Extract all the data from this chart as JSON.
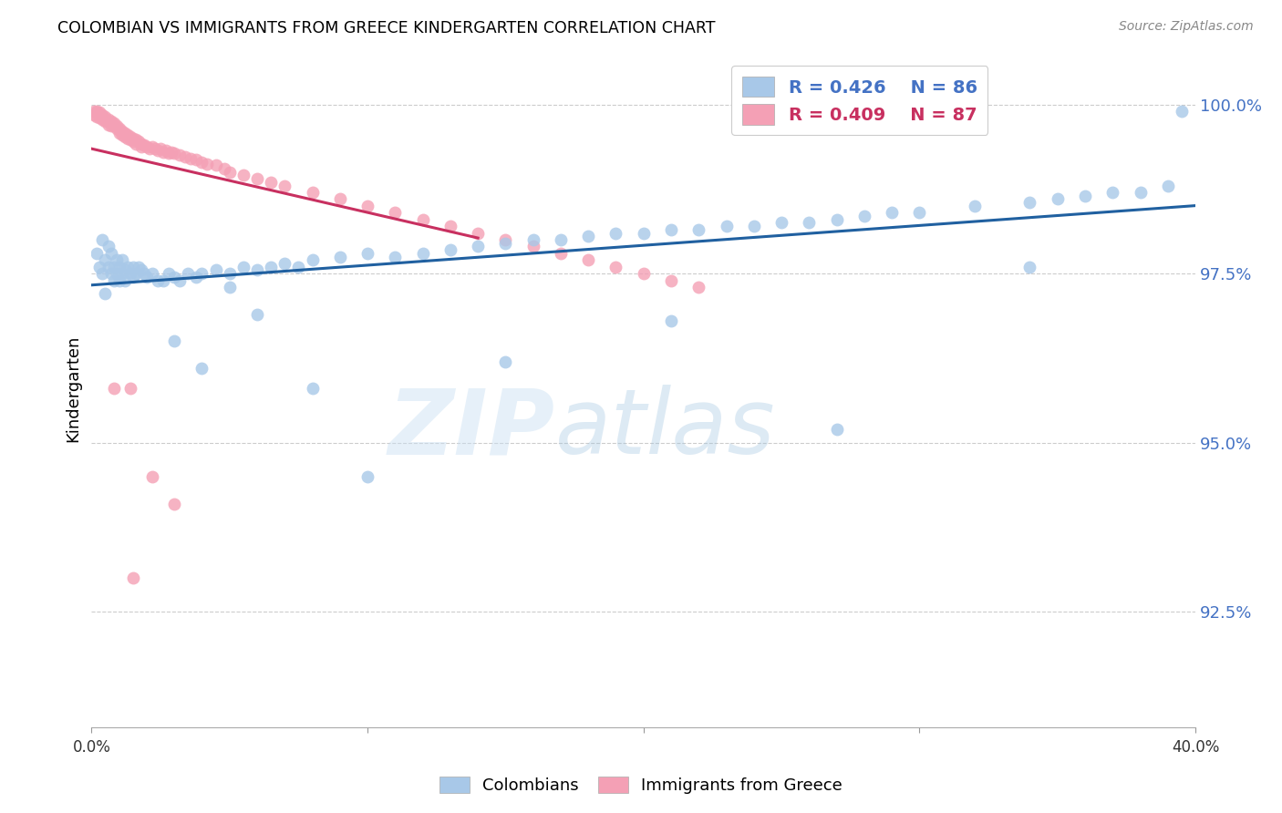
{
  "title": "COLOMBIAN VS IMMIGRANTS FROM GREECE KINDERGARTEN CORRELATION CHART",
  "source": "Source: ZipAtlas.com",
  "ylabel": "Kindergarten",
  "ytick_labels": [
    "100.0%",
    "97.5%",
    "95.0%",
    "92.5%"
  ],
  "ytick_values": [
    1.0,
    0.975,
    0.95,
    0.925
  ],
  "xlim": [
    0.0,
    0.4
  ],
  "ylim": [
    0.908,
    1.008
  ],
  "blue_color": "#A8C8E8",
  "pink_color": "#F4A0B5",
  "blue_line_color": "#2060A0",
  "pink_line_color": "#C83060",
  "colombians_x": [
    0.002,
    0.003,
    0.004,
    0.004,
    0.005,
    0.005,
    0.006,
    0.006,
    0.007,
    0.007,
    0.008,
    0.008,
    0.009,
    0.009,
    0.01,
    0.01,
    0.011,
    0.011,
    0.012,
    0.012,
    0.013,
    0.014,
    0.015,
    0.015,
    0.016,
    0.017,
    0.018,
    0.019,
    0.02,
    0.022,
    0.024,
    0.026,
    0.028,
    0.03,
    0.032,
    0.035,
    0.038,
    0.04,
    0.045,
    0.05,
    0.055,
    0.06,
    0.065,
    0.07,
    0.075,
    0.08,
    0.09,
    0.1,
    0.11,
    0.12,
    0.13,
    0.14,
    0.15,
    0.16,
    0.17,
    0.18,
    0.19,
    0.2,
    0.21,
    0.22,
    0.23,
    0.24,
    0.25,
    0.26,
    0.27,
    0.28,
    0.29,
    0.3,
    0.32,
    0.34,
    0.35,
    0.36,
    0.37,
    0.38,
    0.39,
    0.395,
    0.34,
    0.27,
    0.21,
    0.15,
    0.1,
    0.08,
    0.06,
    0.05,
    0.04,
    0.03
  ],
  "colombians_y": [
    0.978,
    0.976,
    0.975,
    0.98,
    0.977,
    0.972,
    0.976,
    0.979,
    0.975,
    0.978,
    0.976,
    0.974,
    0.977,
    0.975,
    0.976,
    0.974,
    0.975,
    0.977,
    0.9755,
    0.974,
    0.976,
    0.975,
    0.9745,
    0.976,
    0.975,
    0.976,
    0.9755,
    0.975,
    0.9745,
    0.975,
    0.974,
    0.974,
    0.975,
    0.9745,
    0.974,
    0.975,
    0.9745,
    0.975,
    0.9755,
    0.975,
    0.976,
    0.9755,
    0.976,
    0.9765,
    0.976,
    0.977,
    0.9775,
    0.978,
    0.9775,
    0.978,
    0.9785,
    0.979,
    0.9795,
    0.98,
    0.98,
    0.9805,
    0.981,
    0.981,
    0.9815,
    0.9815,
    0.982,
    0.982,
    0.9825,
    0.9825,
    0.983,
    0.9835,
    0.984,
    0.984,
    0.985,
    0.9855,
    0.986,
    0.9865,
    0.987,
    0.987,
    0.988,
    0.999,
    0.976,
    0.952,
    0.968,
    0.962,
    0.945,
    0.958,
    0.969,
    0.973,
    0.961,
    0.965
  ],
  "greece_x": [
    0.001,
    0.001,
    0.002,
    0.002,
    0.002,
    0.003,
    0.003,
    0.003,
    0.004,
    0.004,
    0.004,
    0.005,
    0.005,
    0.005,
    0.006,
    0.006,
    0.006,
    0.007,
    0.007,
    0.007,
    0.008,
    0.008,
    0.009,
    0.009,
    0.01,
    0.01,
    0.01,
    0.011,
    0.011,
    0.012,
    0.012,
    0.013,
    0.013,
    0.014,
    0.014,
    0.015,
    0.015,
    0.016,
    0.016,
    0.017,
    0.018,
    0.018,
    0.019,
    0.02,
    0.021,
    0.022,
    0.023,
    0.024,
    0.025,
    0.026,
    0.027,
    0.028,
    0.029,
    0.03,
    0.032,
    0.034,
    0.036,
    0.038,
    0.04,
    0.042,
    0.045,
    0.048,
    0.05,
    0.055,
    0.06,
    0.065,
    0.07,
    0.08,
    0.09,
    0.1,
    0.11,
    0.12,
    0.13,
    0.14,
    0.15,
    0.16,
    0.17,
    0.18,
    0.19,
    0.2,
    0.21,
    0.22,
    0.014,
    0.022,
    0.03,
    0.015,
    0.008
  ],
  "greece_y": [
    0.999,
    0.9985,
    0.999,
    0.9988,
    0.9982,
    0.9988,
    0.9985,
    0.998,
    0.9985,
    0.9982,
    0.9978,
    0.9982,
    0.9978,
    0.9975,
    0.9978,
    0.9975,
    0.997,
    0.9975,
    0.9972,
    0.9968,
    0.9972,
    0.9968,
    0.9968,
    0.9965,
    0.9965,
    0.9962,
    0.9958,
    0.996,
    0.9955,
    0.9958,
    0.9952,
    0.9955,
    0.995,
    0.9952,
    0.9948,
    0.995,
    0.9945,
    0.9948,
    0.9942,
    0.9945,
    0.9942,
    0.9938,
    0.994,
    0.9938,
    0.9935,
    0.9938,
    0.9935,
    0.9932,
    0.9935,
    0.993,
    0.9932,
    0.9928,
    0.993,
    0.9928,
    0.9925,
    0.9922,
    0.992,
    0.9918,
    0.9915,
    0.9912,
    0.991,
    0.9905,
    0.99,
    0.9895,
    0.989,
    0.9885,
    0.988,
    0.987,
    0.986,
    0.985,
    0.984,
    0.983,
    0.982,
    0.981,
    0.98,
    0.979,
    0.978,
    0.977,
    0.976,
    0.975,
    0.974,
    0.973,
    0.958,
    0.945,
    0.941,
    0.93,
    0.958
  ]
}
